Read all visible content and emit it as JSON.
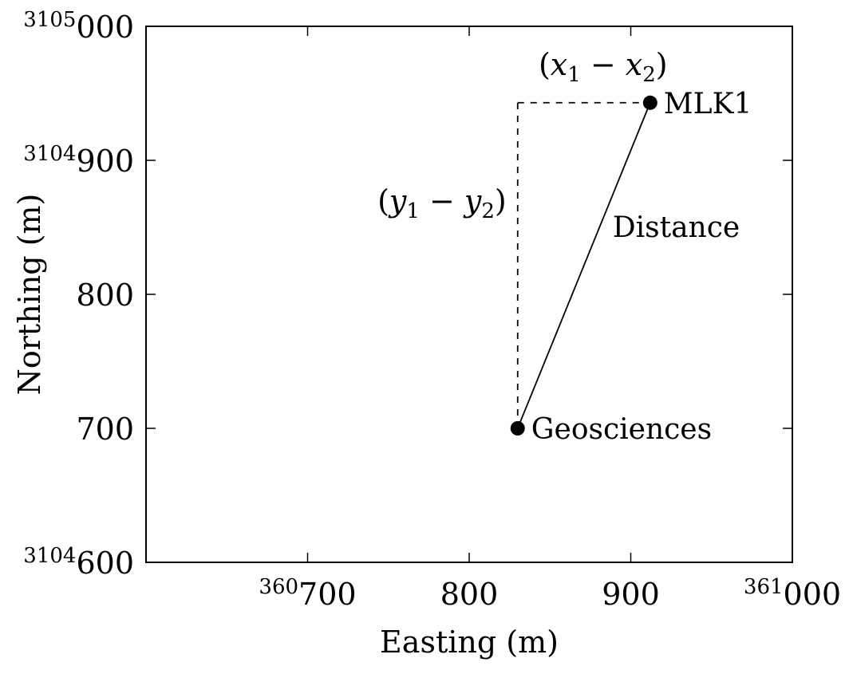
{
  "chart_data": {
    "type": "scatter",
    "xlabel": "Easting (m)",
    "ylabel": "Northing (m)",
    "xlim": [
      360600,
      361000
    ],
    "ylim": [
      3104600,
      3105000
    ],
    "x_ticks": [
      {
        "value": 360700,
        "prefix": "360",
        "main": "700"
      },
      {
        "value": 360800,
        "prefix": "",
        "main": "800"
      },
      {
        "value": 360900,
        "prefix": "",
        "main": "900"
      },
      {
        "value": 361000,
        "prefix": "361",
        "main": "000"
      }
    ],
    "y_ticks": [
      {
        "value": 3104600,
        "prefix": "3104",
        "main": "600"
      },
      {
        "value": 3104700,
        "prefix": "",
        "main": "700"
      },
      {
        "value": 3104800,
        "prefix": "",
        "main": "800"
      },
      {
        "value": 3104900,
        "prefix": "3104",
        "main": "900"
      },
      {
        "value": 3105000,
        "prefix": "3105",
        "main": "000"
      }
    ],
    "points": [
      {
        "label": "Geosciences",
        "x": 360830,
        "y": 3104700
      },
      {
        "label": "MLK1",
        "x": 360912,
        "y": 3104943
      }
    ],
    "annotations": {
      "distance": "Distance",
      "dx": "(x1 − x2)",
      "dy": "(y1 − y2)"
    }
  }
}
